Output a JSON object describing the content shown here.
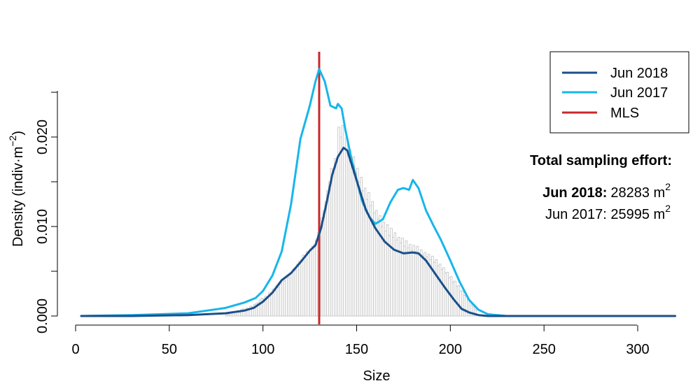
{
  "chart_data": {
    "type": "line",
    "title": "",
    "xlabel": "Size",
    "ylabel_main": "Density (indiv",
    "ylabel_dot": "·",
    "ylabel_m": "m",
    "ylabel_exp": "−2",
    "ylabel_close": ")",
    "xlim": [
      0,
      320
    ],
    "ylim": [
      0,
      0.025
    ],
    "x_ticks": [
      0,
      50,
      100,
      150,
      200,
      250,
      300
    ],
    "x_tick_labels": [
      "0",
      "50",
      "100",
      "150",
      "200",
      "250",
      "300"
    ],
    "y_ticks": [
      0,
      0.005,
      0.01,
      0.015,
      0.02,
      0.025
    ],
    "y_tick_labels": [
      "0.000",
      "0.010",
      "0.020"
    ],
    "y_labeled_ticks": [
      0,
      0.01,
      0.02
    ],
    "grid": false,
    "legend_position": "top-right",
    "legend": [
      {
        "label": "Jun 2018",
        "color": "#1b4f8a"
      },
      {
        "label": "Jun 2017",
        "color": "#17b6ea"
      },
      {
        "label": "MLS",
        "color": "#c8282a"
      }
    ],
    "mls_x": 130,
    "annotation": {
      "heading": "Total sampling effort:",
      "line1_label": "Jun 2018:",
      "line1_value": "28283 m",
      "line1_exp": "2",
      "line2_text": "Jun 2017: 25995 m",
      "line2_exp": "2"
    },
    "series": [
      {
        "name": "Jun 2018",
        "color": "#1b4f8a",
        "x": [
          3,
          30,
          60,
          80,
          90,
          95,
          100,
          105,
          110,
          115,
          120,
          125,
          128,
          131,
          134,
          137,
          140,
          143,
          145,
          148,
          152,
          155,
          160,
          165,
          170,
          175,
          180,
          183,
          187,
          192,
          197,
          202,
          206,
          210,
          215,
          220,
          230,
          250,
          280,
          320
        ],
        "y": [
          0.0,
          0.0,
          0.0001,
          0.0003,
          0.0006,
          0.0009,
          0.0016,
          0.0026,
          0.004,
          0.0048,
          0.006,
          0.0073,
          0.0079,
          0.0098,
          0.0127,
          0.0158,
          0.0178,
          0.0188,
          0.0185,
          0.0165,
          0.0138,
          0.0118,
          0.0098,
          0.0083,
          0.0074,
          0.007,
          0.0071,
          0.007,
          0.0062,
          0.0047,
          0.0032,
          0.0018,
          0.0008,
          0.0004,
          0.0001,
          0.0,
          0.0,
          0.0,
          0.0,
          0.0
        ]
      },
      {
        "name": "Jun 2017",
        "color": "#17b6ea",
        "x": [
          3,
          30,
          60,
          70,
          80,
          90,
          96,
          100,
          105,
          110,
          115,
          120,
          125,
          128,
          130,
          133,
          136,
          139,
          140,
          142,
          144,
          147,
          150,
          153,
          157,
          160,
          164,
          168,
          172,
          175,
          178,
          180,
          183,
          187,
          191,
          195,
          200,
          205,
          210,
          215,
          220,
          230,
          250,
          280,
          320
        ],
        "y": [
          0.0,
          0.0001,
          0.0003,
          0.0006,
          0.0009,
          0.0015,
          0.002,
          0.0028,
          0.0045,
          0.0072,
          0.0125,
          0.0198,
          0.0235,
          0.0262,
          0.0276,
          0.0262,
          0.0235,
          0.0232,
          0.0237,
          0.0232,
          0.0208,
          0.0178,
          0.0152,
          0.0128,
          0.011,
          0.0103,
          0.0108,
          0.0127,
          0.0141,
          0.0143,
          0.0141,
          0.0152,
          0.0143,
          0.0118,
          0.0101,
          0.0085,
          0.0062,
          0.0038,
          0.0018,
          0.0007,
          0.0002,
          0.0,
          0.0,
          0.0,
          0.0
        ]
      }
    ],
    "histogram": {
      "bin_width": 1,
      "color": "#c0c0c0",
      "x_start": 80,
      "y": [
        0.0002,
        0.0002,
        0.0003,
        0.0003,
        0.0004,
        0.0005,
        0.0006,
        0.0004,
        0.0007,
        0.0008,
        0.0006,
        0.0009,
        0.0008,
        0.0011,
        0.001,
        0.0013,
        0.0014,
        0.0015,
        0.0018,
        0.002,
        0.0019,
        0.0022,
        0.0021,
        0.0026,
        0.0025,
        0.003,
        0.0028,
        0.0034,
        0.0032,
        0.0036,
        0.0041,
        0.0039,
        0.0044,
        0.0043,
        0.0047,
        0.0048,
        0.0053,
        0.0051,
        0.0058,
        0.0061,
        0.0063,
        0.0068,
        0.0066,
        0.0072,
        0.007,
        0.0075,
        0.0078,
        0.008,
        0.0085,
        0.0093,
        0.0098,
        0.011,
        0.0118,
        0.0128,
        0.014,
        0.015,
        0.0165,
        0.0163,
        0.0176,
        0.0173,
        0.0211,
        0.02,
        0.0213,
        0.0188,
        0.0199,
        0.0182,
        0.0185,
        0.0172,
        0.0178,
        0.016,
        0.0165,
        0.015,
        0.0155,
        0.014,
        0.0143,
        0.013,
        0.0138,
        0.0123,
        0.0128,
        0.0115,
        0.0118,
        0.0108,
        0.0112,
        0.01,
        0.0105,
        0.0095,
        0.0102,
        0.009,
        0.0098,
        0.0088,
        0.0093,
        0.0085,
        0.0088,
        0.0082,
        0.0087,
        0.0078,
        0.0084,
        0.0076,
        0.008,
        0.0073,
        0.0079,
        0.0072,
        0.0078,
        0.007,
        0.0074,
        0.0068,
        0.0071,
        0.0066,
        0.0069,
        0.0063,
        0.0067,
        0.006,
        0.0063,
        0.0056,
        0.0058,
        0.0052,
        0.0054,
        0.0048,
        0.0049,
        0.0043,
        0.0044,
        0.0038,
        0.0039,
        0.0033,
        0.0034,
        0.0028,
        0.0028,
        0.0023,
        0.0022,
        0.0018,
        0.0016,
        0.0012,
        0.001,
        0.0007
      ]
    }
  }
}
